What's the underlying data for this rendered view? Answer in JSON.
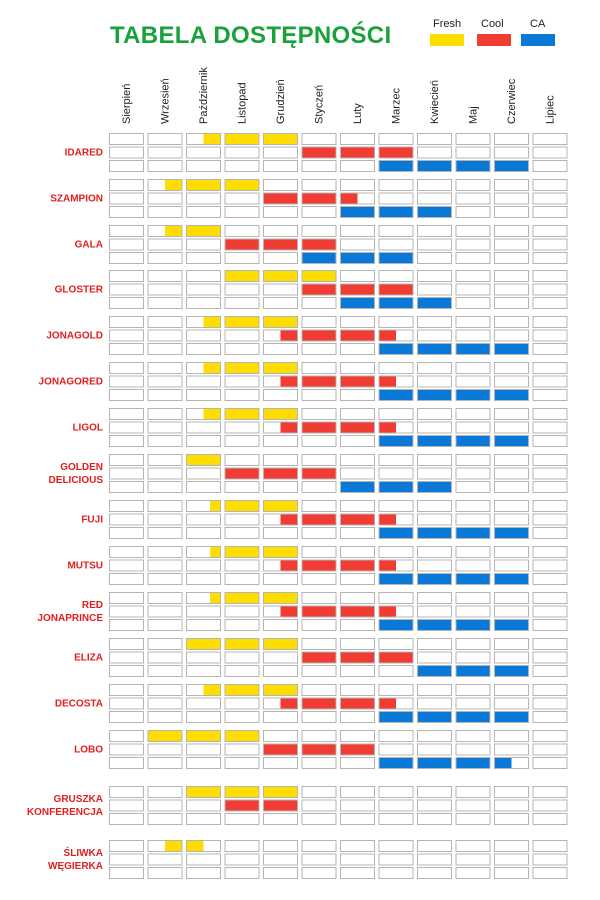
{
  "chart_data": {
    "type": "table",
    "title": "TABELA DOSTĘPNOŚCI",
    "legend": [
      {
        "key": "fresh",
        "label": "Fresh",
        "color": "#ffdd00"
      },
      {
        "key": "cool",
        "label": "Cool",
        "color": "#f03c32"
      },
      {
        "key": "ca",
        "label": "CA",
        "color": "#0a78d7"
      }
    ],
    "months": [
      "Sierpień",
      "Wrzesień",
      "Październik",
      "Listopad",
      "Grudzień",
      "Styczeń",
      "Luty",
      "Marzec",
      "Kwiecień",
      "Maj",
      "Czerwiec",
      "Lipiec"
    ],
    "varieties": [
      {
        "name": [
          "IDARED"
        ],
        "fresh": [
          [
            2.5,
            5
          ]
        ],
        "cool": [
          [
            5,
            8
          ]
        ],
        "ca": [
          [
            7,
            11
          ]
        ]
      },
      {
        "name": [
          "SZAMPION"
        ],
        "fresh": [
          [
            1.5,
            4
          ]
        ],
        "cool": [
          [
            4,
            6.5
          ]
        ],
        "ca": [
          [
            6,
            9
          ]
        ]
      },
      {
        "name": [
          "GALA"
        ],
        "fresh": [
          [
            1.5,
            3
          ]
        ],
        "cool": [
          [
            3,
            6
          ]
        ],
        "ca": [
          [
            5,
            8
          ]
        ]
      },
      {
        "name": [
          "GLOSTER"
        ],
        "fresh": [
          [
            3,
            6
          ]
        ],
        "cool": [
          [
            5,
            8
          ]
        ],
        "ca": [
          [
            6,
            9
          ]
        ]
      },
      {
        "name": [
          "JONAGOLD"
        ],
        "fresh": [
          [
            2.5,
            5
          ]
        ],
        "cool": [
          [
            4.5,
            7.5
          ]
        ],
        "ca": [
          [
            7,
            11
          ]
        ]
      },
      {
        "name": [
          "JONAGORED"
        ],
        "fresh": [
          [
            2.5,
            5
          ]
        ],
        "cool": [
          [
            4.5,
            7.5
          ]
        ],
        "ca": [
          [
            7,
            11
          ]
        ]
      },
      {
        "name": [
          "LIGOL"
        ],
        "fresh": [
          [
            2.5,
            5
          ]
        ],
        "cool": [
          [
            4.5,
            7.5
          ]
        ],
        "ca": [
          [
            7,
            11
          ]
        ]
      },
      {
        "name": [
          "GOLDEN",
          "DELICIOUS"
        ],
        "fresh": [
          [
            2,
            3
          ]
        ],
        "cool": [
          [
            3,
            6
          ]
        ],
        "ca": [
          [
            6,
            9
          ]
        ]
      },
      {
        "name": [
          "FUJI"
        ],
        "fresh": [
          [
            2.7,
            5
          ]
        ],
        "cool": [
          [
            4.5,
            7.5
          ]
        ],
        "ca": [
          [
            7,
            11
          ]
        ]
      },
      {
        "name": [
          "MUTSU"
        ],
        "fresh": [
          [
            2.7,
            5
          ]
        ],
        "cool": [
          [
            4.5,
            7.5
          ]
        ],
        "ca": [
          [
            7,
            11
          ]
        ]
      },
      {
        "name": [
          "RED",
          "JONAPRINCE"
        ],
        "fresh": [
          [
            2.7,
            5
          ]
        ],
        "cool": [
          [
            4.5,
            7.5
          ]
        ],
        "ca": [
          [
            7,
            11
          ]
        ]
      },
      {
        "name": [
          "ELIZA"
        ],
        "fresh": [
          [
            2,
            5
          ]
        ],
        "cool": [
          [
            5,
            8
          ]
        ],
        "ca": [
          [
            8,
            11
          ]
        ]
      },
      {
        "name": [
          "DECOSTA"
        ],
        "fresh": [
          [
            2.5,
            5
          ]
        ],
        "cool": [
          [
            4.5,
            7.5
          ]
        ],
        "ca": [
          [
            7,
            11
          ]
        ]
      },
      {
        "name": [
          "LOBO"
        ],
        "fresh": [
          [
            1,
            4
          ]
        ],
        "cool": [
          [
            4,
            7
          ]
        ],
        "ca": [
          [
            7,
            10.5
          ]
        ]
      },
      {
        "name": [
          "GRUSZKA",
          "KONFERENCJA"
        ],
        "fresh": [
          [
            2,
            5
          ]
        ],
        "cool": [
          [
            3,
            5
          ]
        ],
        "ca": []
      },
      {
        "name": [
          "ŚLIWKA",
          "WĘGIERKA"
        ],
        "fresh": [
          [
            1.5,
            2
          ],
          [
            2,
            2.5
          ]
        ],
        "cool": [],
        "ca": []
      }
    ]
  }
}
